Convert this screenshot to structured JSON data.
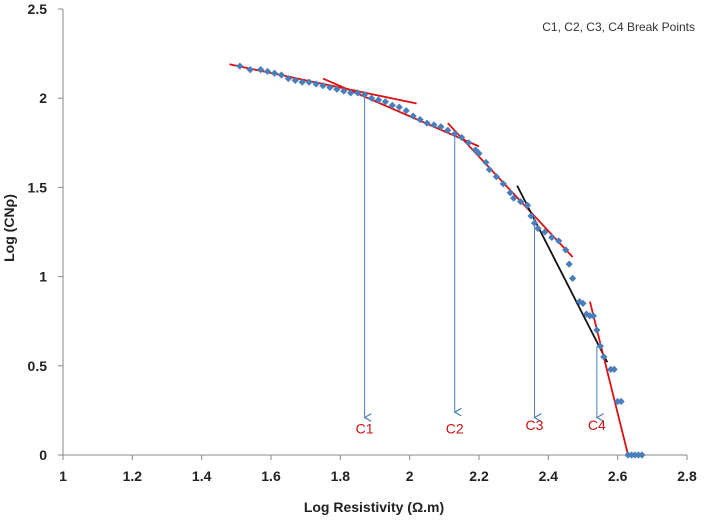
{
  "chart_data": {
    "type": "scatter",
    "title": "",
    "xlabel": "Log Resistivity (Ω.m)",
    "ylabel": "Log (CNρ)",
    "xlim": [
      1,
      2.8
    ],
    "ylim": [
      0,
      2.5
    ],
    "x_ticks": [
      1,
      1.2,
      1.4,
      1.6,
      1.8,
      2,
      2.2,
      2.4,
      2.6,
      2.8
    ],
    "x_tick_labels": [
      "1",
      "1.2",
      "1.4",
      "1.6",
      "1.8",
      "2",
      "2.2",
      "2.4",
      "2.6",
      "2.8"
    ],
    "y_ticks": [
      0,
      0.5,
      1,
      1.5,
      2,
      2.5
    ],
    "y_tick_labels": [
      "0",
      "0.5",
      "1",
      "1.5",
      "2",
      "2.5"
    ],
    "grid": false,
    "legend": {
      "text": "C1, C2, C3, C4 Break Points",
      "placement": "top-right"
    },
    "marker_color": "#4a7ebb",
    "line_color": "#dd1111",
    "black_line_color": "#111111",
    "arrow_color": "#4a7ebb",
    "series": [
      {
        "name": "Data",
        "points": [
          [
            1.51,
            2.18
          ],
          [
            1.54,
            2.16
          ],
          [
            1.57,
            2.16
          ],
          [
            1.59,
            2.15
          ],
          [
            1.61,
            2.14
          ],
          [
            1.63,
            2.13
          ],
          [
            1.65,
            2.11
          ],
          [
            1.67,
            2.1
          ],
          [
            1.69,
            2.09
          ],
          [
            1.71,
            2.09
          ],
          [
            1.73,
            2.08
          ],
          [
            1.75,
            2.07
          ],
          [
            1.77,
            2.06
          ],
          [
            1.79,
            2.05
          ],
          [
            1.81,
            2.04
          ],
          [
            1.83,
            2.03
          ],
          [
            1.85,
            2.03
          ],
          [
            1.87,
            2.02
          ],
          [
            1.89,
            2.0
          ],
          [
            1.91,
            1.99
          ],
          [
            1.93,
            1.98
          ],
          [
            1.95,
            1.96
          ],
          [
            1.97,
            1.95
          ],
          [
            1.99,
            1.93
          ],
          [
            2.01,
            1.9
          ],
          [
            2.03,
            1.88
          ],
          [
            2.05,
            1.86
          ],
          [
            2.07,
            1.85
          ],
          [
            2.09,
            1.84
          ],
          [
            2.11,
            1.82
          ],
          [
            2.13,
            1.8
          ],
          [
            2.15,
            1.78
          ],
          [
            2.17,
            1.75
          ],
          [
            2.19,
            1.71
          ],
          [
            2.2,
            1.69
          ],
          [
            2.22,
            1.64
          ],
          [
            2.23,
            1.6
          ],
          [
            2.25,
            1.56
          ],
          [
            2.27,
            1.52
          ],
          [
            2.29,
            1.47
          ],
          [
            2.3,
            1.44
          ],
          [
            2.32,
            1.42
          ],
          [
            2.34,
            1.4
          ],
          [
            2.35,
            1.34
          ],
          [
            2.36,
            1.3
          ],
          [
            2.37,
            1.27
          ],
          [
            2.39,
            1.25
          ],
          [
            2.41,
            1.22
          ],
          [
            2.43,
            1.2
          ],
          [
            2.45,
            1.15
          ],
          [
            2.46,
            1.07
          ],
          [
            2.47,
            0.99
          ],
          [
            2.49,
            0.86
          ],
          [
            2.5,
            0.85
          ],
          [
            2.51,
            0.79
          ],
          [
            2.52,
            0.78
          ],
          [
            2.53,
            0.78
          ],
          [
            2.54,
            0.7
          ],
          [
            2.55,
            0.61
          ],
          [
            2.56,
            0.55
          ],
          [
            2.58,
            0.48
          ],
          [
            2.59,
            0.48
          ],
          [
            2.6,
            0.3
          ],
          [
            2.61,
            0.3
          ],
          [
            2.63,
            0.0
          ],
          [
            2.64,
            0.0
          ],
          [
            2.65,
            0.0
          ],
          [
            2.66,
            0.0
          ],
          [
            2.67,
            0.0
          ]
        ]
      }
    ],
    "fit_lines": [
      {
        "name": "segment-1",
        "color": "red",
        "x1": 1.48,
        "y1": 2.19,
        "x2": 2.02,
        "y2": 1.97
      },
      {
        "name": "segment-2",
        "color": "red",
        "x1": 1.75,
        "y1": 2.11,
        "x2": 2.2,
        "y2": 1.73
      },
      {
        "name": "segment-3",
        "color": "red",
        "x1": 2.11,
        "y1": 1.86,
        "x2": 2.47,
        "y2": 1.11
      },
      {
        "name": "segment-4",
        "color": "black",
        "x1": 2.31,
        "y1": 1.51,
        "x2": 2.57,
        "y2": 0.52
      },
      {
        "name": "segment-5",
        "color": "red",
        "x1": 2.52,
        "y1": 0.86,
        "x2": 2.63,
        "y2": 0.0
      }
    ],
    "break_points": [
      {
        "label": "C1",
        "x": 1.87,
        "y_from": 2.02,
        "y_to": 0.21,
        "label_y": 0.12
      },
      {
        "label": "C2",
        "x": 2.13,
        "y_from": 1.8,
        "y_to": 0.24,
        "label_y": 0.12
      },
      {
        "label": "C3",
        "x": 2.36,
        "y_from": 1.34,
        "y_to": 0.21,
        "label_y": 0.14
      },
      {
        "label": "C4",
        "x": 2.54,
        "y_from": 0.61,
        "y_to": 0.21,
        "label_y": 0.14
      }
    ]
  }
}
